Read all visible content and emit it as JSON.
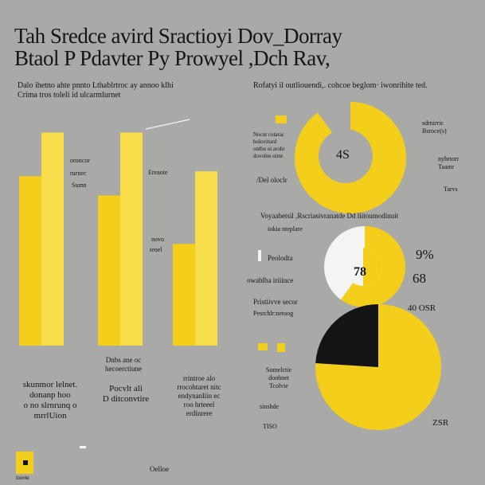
{
  "header": {
    "title_line1": "Tah Sredce avird Sractioyi Dov_Dorray",
    "title_line2": "Btaol P Pdavter Py Prowyel ,Dch Rav,"
  },
  "left_panel": {
    "subtitle_line1": "Dalo ihetno ahte pnnto Lthablrtroc ay annoo klhi",
    "subtitle_line2": "Crima tros toleli id ulcarmlurnet",
    "bar_label_a": "oroncor",
    "bar_label_b": "rurnec",
    "bar_label_c": "Sumn",
    "bar_label_d": "Ereaote",
    "bar_label_e": "novo",
    "bar_label_f": "teoel",
    "bottom_left": [
      "skunmor lelnet.",
      "donanp hoo",
      "o no slrnrunq o",
      "mrrlUion"
    ],
    "bottom_mid_a": [
      "Dnbs ane oc",
      "hecoerctiune"
    ],
    "bottom_mid_b": [
      "Pocvlt ali",
      "D ditconvtire"
    ],
    "bottom_mid_c": [
      "rrintroe alo",
      "rrocohtaret nitc",
      "endynanliin ec",
      "roo hrteeel",
      "erdinrere"
    ],
    "footer_text": "Oelloe",
    "badge_text": "toonte"
  },
  "right_panel": {
    "subtitle": "Rofatyi il outliouendi,. cohcoe beglom·  iwonrihite ted.",
    "donut1_center": "4S",
    "donut1_legend": [
      "Nocnt cotarac",
      "boloviturd",
      "ontbu oi arohr",
      "dovolne oimt"
    ],
    "donut1_side_a": [
      "sdrnirric",
      "Bsroce(s)"
    ],
    "donut1_side_b": [
      "nyhrtorr",
      "Taamr"
    ],
    "donut1_side_c": "Tarvs",
    "donut1_note": "/Del oloclr",
    "section2_title": "Voyaabetsil ,Rscriasivranatde Dd liitoumodinuit",
    "section2_sub": "iokia nteplare",
    "pie2_label_a": "Peolodta",
    "pie2_label_b": "owablba iriiince",
    "pie2_label_c": "Pristiivve secor",
    "pie2_label_d": "Pesrchlr:netoog",
    "pie2_center": "78",
    "pie2_val_a": "9%",
    "pie2_val_b": "68",
    "pie2_val_c": "40 OSR",
    "pie3_label_a": [
      "Somelctie",
      "donhnet",
      "Tcolvie"
    ],
    "pie3_label_b": "sinshde",
    "pie3_label_c": "TISO",
    "pie3_val": "ZSR"
  },
  "colors": {
    "yellow": "#f3cf1b",
    "yellow_light": "#f7dd4a",
    "dark": "#141414",
    "white": "#f4f4f2",
    "bg": "#a9a9a7"
  },
  "chart_data": [
    {
      "type": "bar",
      "title": "",
      "categories": [
        "1",
        "2",
        "3",
        "4",
        "5",
        "6"
      ],
      "values": [
        70,
        88,
        62,
        88,
        42,
        72
      ],
      "ylim": [
        0,
        100
      ]
    },
    {
      "type": "pie",
      "title": "",
      "categories": [
        "yellow",
        "gap"
      ],
      "values": [
        90,
        10
      ]
    },
    {
      "type": "pie",
      "title": "",
      "categories": [
        "yellow",
        "white"
      ],
      "values": [
        60,
        40
      ]
    },
    {
      "type": "pie",
      "title": "",
      "categories": [
        "yellow",
        "dark"
      ],
      "values": [
        76,
        24
      ]
    }
  ]
}
